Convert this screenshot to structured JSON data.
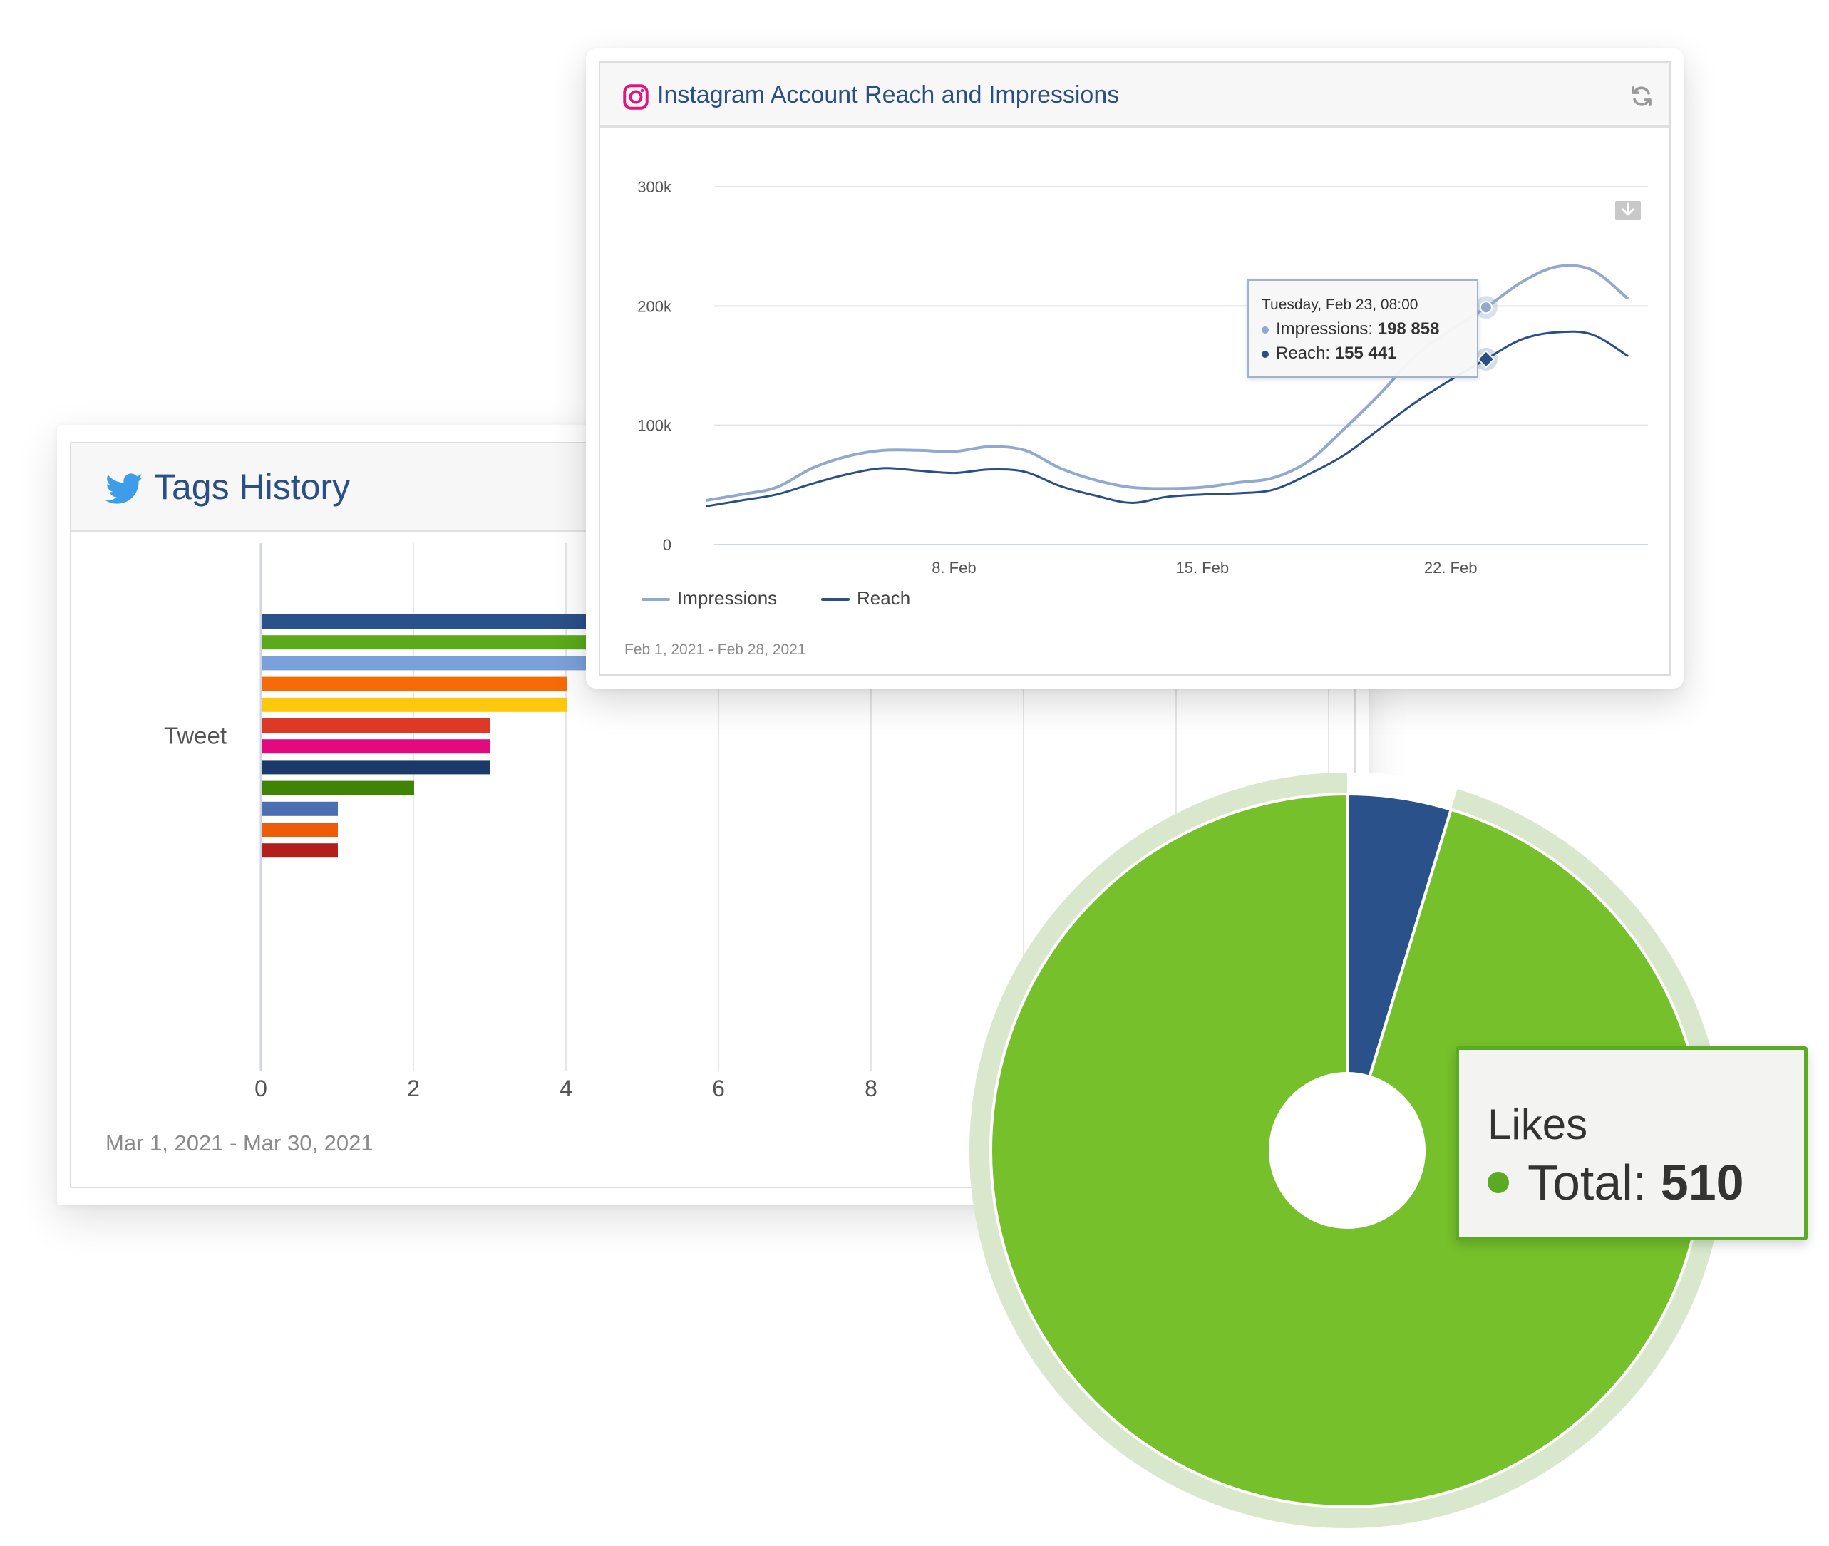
{
  "tags_card": {
    "title": "Tags History",
    "date_range": "Mar 1, 2021 - Mar 30, 2021",
    "icon": "twitter-bird-icon"
  },
  "instagram_card": {
    "title": "Instagram Account Reach and Impressions",
    "date_range": "Feb 1, 2021 - Feb 28, 2021",
    "icon": "instagram-icon",
    "tooltip": {
      "date": "Tuesday, Feb 23, 08:00",
      "impressions_label": "Impressions: ",
      "impressions_value": "198 858",
      "reach_label": "Reach: ",
      "reach_value": "155 441"
    }
  },
  "likes_card": {
    "label": "Likes",
    "total_label": "Total: ",
    "total_value": "510"
  },
  "colors": {
    "impressions": "#92a9cf",
    "reach": "#2a4f86",
    "likes_green": "#76c12b",
    "likes_blue": "#2a5189",
    "likes_ring": "#d9e8cc"
  },
  "chart_data": [
    {
      "type": "bar",
      "orientation": "horizontal",
      "categories": [
        "Tweet"
      ],
      "series": [
        {
          "values": [
            12
          ],
          "color": "#2a5189"
        },
        {
          "values": [
            5
          ],
          "color": "#5aaa1a"
        },
        {
          "values": [
            5
          ],
          "color": "#7aa1d9"
        },
        {
          "values": [
            4
          ],
          "color": "#f76b07"
        },
        {
          "values": [
            4
          ],
          "color": "#fec90c"
        },
        {
          "values": [
            3
          ],
          "color": "#dc3a26"
        },
        {
          "values": [
            3
          ],
          "color": "#e3097f"
        },
        {
          "values": [
            3
          ],
          "color": "#1b3a6a"
        },
        {
          "values": [
            2
          ],
          "color": "#3f8405"
        },
        {
          "values": [
            1
          ],
          "color": "#4b6fb0"
        },
        {
          "values": [
            1
          ],
          "color": "#ec5c09"
        },
        {
          "values": [
            1
          ],
          "color": "#b3201c"
        }
      ],
      "xticks": [
        "0",
        "2",
        "4",
        "6",
        "8"
      ],
      "xlim": [
        0,
        14
      ],
      "grid": true
    },
    {
      "type": "line",
      "x": [
        "Feb 1",
        "Feb 2",
        "Feb 3",
        "Feb 4",
        "Feb 5",
        "Feb 6",
        "Feb 7",
        "Feb 8",
        "Feb 9",
        "Feb 10",
        "Feb 11",
        "Feb 12",
        "Feb 13",
        "Feb 14",
        "Feb 15",
        "Feb 16",
        "Feb 17",
        "Feb 18",
        "Feb 19",
        "Feb 20",
        "Feb 21",
        "Feb 22",
        "Feb 23",
        "Feb 24",
        "Feb 25",
        "Feb 26",
        "Feb 27"
      ],
      "series": [
        {
          "name": "Impressions",
          "values": [
            37000,
            42000,
            48000,
            64000,
            74000,
            79000,
            79000,
            78000,
            82000,
            79000,
            64000,
            54000,
            48000,
            47000,
            48000,
            52000,
            56000,
            70000,
            97000,
            126000,
            158000,
            180000,
            198858,
            220000,
            233000,
            230000,
            206000
          ]
        },
        {
          "name": "Reach",
          "values": [
            32000,
            37000,
            42000,
            51000,
            59000,
            64000,
            62000,
            60000,
            63000,
            61000,
            49000,
            41000,
            35000,
            40000,
            42000,
            43000,
            46000,
            59000,
            75000,
            97000,
            119000,
            138000,
            155441,
            172000,
            178000,
            176000,
            158000
          ]
        }
      ],
      "xticks": [
        "8. Feb",
        "15. Feb",
        "22. Feb"
      ],
      "yticks": [
        "0",
        "100k",
        "200k",
        "300k"
      ],
      "ylim": [
        0,
        300000
      ],
      "legend_position": "bottom-left",
      "grid": true
    },
    {
      "type": "pie",
      "labels": [
        "Likes"
      ],
      "slices": [
        {
          "value": 24,
          "color": "#2a5189"
        },
        {
          "value": 486,
          "color": "#76c12b"
        }
      ],
      "total": 510
    }
  ]
}
